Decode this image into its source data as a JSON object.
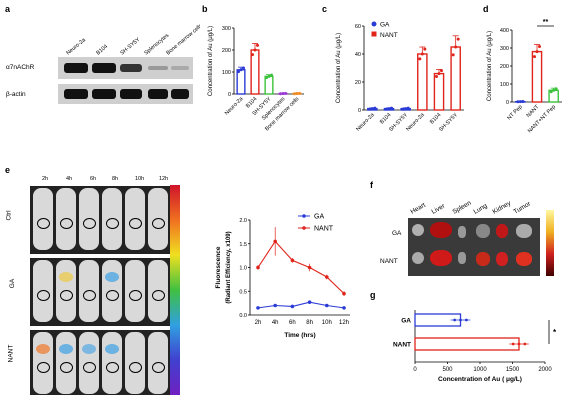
{
  "panels": {
    "a": {
      "letter": "a",
      "lanes": [
        "Neuro-2a",
        "B104",
        "SH-SY5Y",
        "Splenocytes",
        "Bone marrow cells"
      ],
      "rows": [
        "α7nAChR",
        "β-actin"
      ]
    },
    "b": {
      "letter": "b"
    },
    "c": {
      "letter": "c"
    },
    "d": {
      "letter": "d",
      "sig": "**"
    },
    "e": {
      "letter": "e",
      "times": [
        "2h",
        "4h",
        "6h",
        "8h",
        "10h",
        "12h"
      ],
      "rows": [
        "Ctrl",
        "GA",
        "NANT"
      ]
    },
    "f": {
      "letter": "f",
      "organs": [
        "Heart",
        "Liver",
        "Spleen",
        "Lung",
        "Kidney",
        "Tumor"
      ],
      "rows": [
        "GA",
        "NANT"
      ]
    },
    "g": {
      "letter": "g",
      "sig": "*"
    }
  },
  "colors": {
    "ga": "#2b3bd6",
    "nant": "#e0241b",
    "third": "#3cc23c",
    "purple": "#9a3bd6",
    "orange": "#f08a24"
  },
  "chart_data": [
    {
      "id": "b",
      "type": "bar",
      "categories": [
        "Neuro-2a",
        "B104",
        "SH-SY5Y",
        "Splenocytes",
        "Bone marrow cells"
      ],
      "values": [
        110,
        200,
        80,
        2,
        2
      ],
      "errors": [
        12,
        30,
        8,
        1,
        1
      ],
      "ylabel": "Concentration of Au (μg/L)",
      "ylim": [
        0,
        300
      ],
      "yticks": [
        "0",
        "100",
        "200",
        "300"
      ]
    },
    {
      "id": "c",
      "type": "bar",
      "categories": [
        "Neuro-2a",
        "B104",
        "SH-SY5Y",
        "Neuro-2a",
        "B104",
        "SH-SY5Y"
      ],
      "series": [
        {
          "name": "GA",
          "values": [
            1,
            1,
            1,
            null,
            null,
            null
          ]
        },
        {
          "name": "NANT",
          "values": [
            null,
            null,
            null,
            40,
            26,
            45
          ]
        }
      ],
      "errors": [
        0.5,
        0.5,
        0.5,
        5,
        3,
        8
      ],
      "ylabel": "Concentration of Au (μg/L)",
      "ylim": [
        0,
        60
      ],
      "yticks": [
        "0",
        "20",
        "40",
        "60"
      ]
    },
    {
      "id": "d",
      "type": "bar",
      "categories": [
        "NT Pep",
        "NANT",
        "NANT+NT Pep"
      ],
      "values": [
        2,
        280,
        65
      ],
      "errors": [
        1,
        40,
        12
      ],
      "ylabel": "Concentration of Au (μg/L)",
      "ylim": [
        0,
        400
      ],
      "yticks": [
        "0",
        "100",
        "200",
        "300",
        "400"
      ]
    },
    {
      "id": "e",
      "type": "line",
      "x": [
        "2h",
        "4h",
        "6h",
        "8h",
        "10h",
        "12h"
      ],
      "series": [
        {
          "name": "GA",
          "values": [
            0.15,
            0.2,
            0.18,
            0.27,
            0.2,
            0.15
          ]
        },
        {
          "name": "NANT",
          "values": [
            1.0,
            1.55,
            1.15,
            1.0,
            0.8,
            0.45
          ]
        }
      ],
      "errors_nant": [
        0.05,
        0.3,
        0.05,
        0.08,
        0.05,
        0.05
      ],
      "xlabel": "Time (hrs)",
      "ylabel": "Fluorescence",
      "ylabel2": "(Radiant Efficiency, x10",
      "ylabel2_sup": "9",
      "ylabel2_end": ")",
      "ylim": [
        0,
        2.0
      ],
      "yticks": [
        "0.0",
        "0.5",
        "1.0",
        "1.5",
        "2.0"
      ]
    },
    {
      "id": "g",
      "type": "bar",
      "orientation": "horizontal",
      "categories": [
        "GA",
        "NANT"
      ],
      "values": [
        700,
        1600
      ],
      "errors": [
        150,
        150
      ],
      "xlabel": "Concentration of Au ( μg/L)",
      "xlim": [
        0,
        2000
      ],
      "xticks": [
        "0",
        "500",
        "1000",
        "1500",
        "2000"
      ]
    }
  ]
}
